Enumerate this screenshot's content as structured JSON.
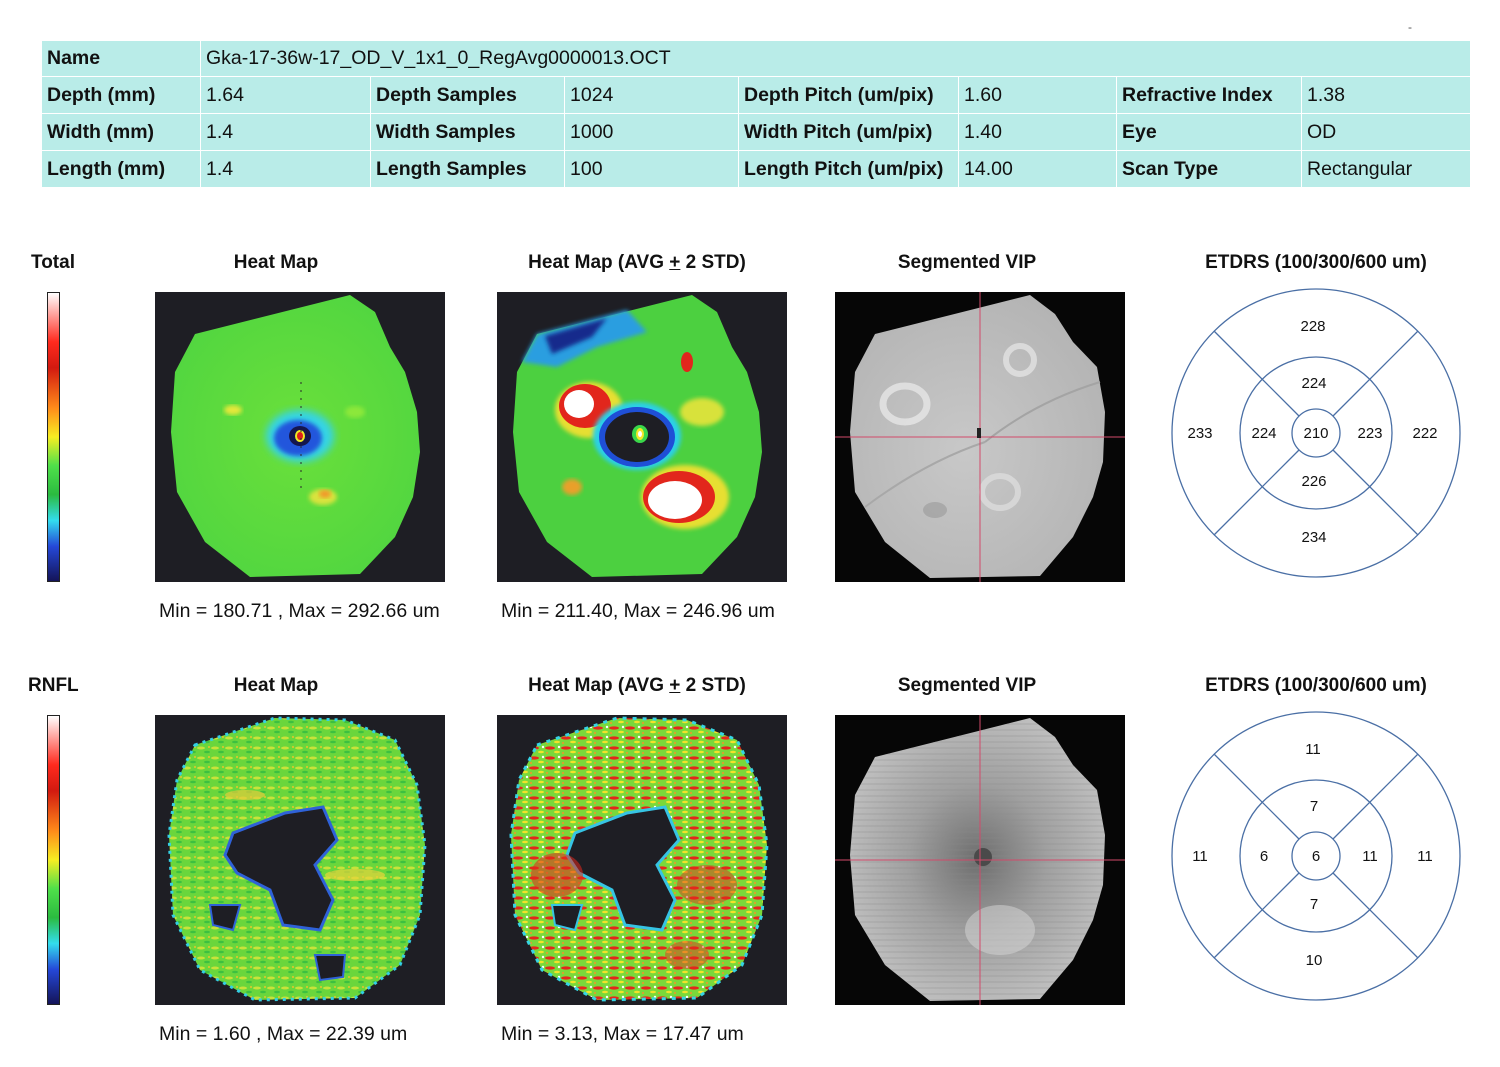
{
  "header": {
    "name_label": "Name",
    "name_value": "Gka-17-36w-17_OD_V_1x1_0_RegAvg0000013.OCT",
    "rows": [
      {
        "c1_label": "Depth (mm)",
        "c1_value": "1.64",
        "c2_label": "Depth Samples",
        "c2_value": "1024",
        "c3_label": "Depth Pitch (um/pix)",
        "c3_value": "1.60",
        "c4_label": "Refractive Index",
        "c4_value": "1.38"
      },
      {
        "c1_label": "Width (mm)",
        "c1_value": "1.4",
        "c2_label": "Width Samples",
        "c2_value": "1000",
        "c3_label": "Width Pitch (um/pix)",
        "c3_value": "1.40",
        "c4_label": "Eye",
        "c4_value": "OD"
      },
      {
        "c1_label": "Length (mm)",
        "c1_value": "1.4",
        "c2_label": "Length Samples",
        "c2_value": "100",
        "c3_label": "Length Pitch (um/pix)",
        "c3_value": "14.00",
        "c4_label": "Scan Type",
        "c4_value": "Rectangular"
      }
    ]
  },
  "column_titles": {
    "heat_map": "Heat Map",
    "heat_map_std_prefix": "Heat Map (AVG ",
    "heat_map_std_pm": "+",
    "heat_map_std_suffix": " 2 STD)",
    "segmented_vip": "Segmented VIP",
    "etdrs": "ETDRS (100/300/600 um)"
  },
  "sections": {
    "total": {
      "label": "Total",
      "heat_map_minmax": "Min = 180.71 , Max = 292.66 um",
      "std_map_minmax": "Min = 211.40, Max = 246.96 um",
      "etdrs": {
        "center": "210",
        "inner_superior": "224",
        "inner_temporal": "224",
        "inner_nasal": "223",
        "inner_inferior": "226",
        "outer_superior": "228",
        "outer_temporal": "233",
        "outer_nasal": "222",
        "outer_inferior": "234"
      }
    },
    "rnfl": {
      "label": "RNFL",
      "heat_map_minmax": "Min = 1.60 , Max = 22.39 um",
      "std_map_minmax": "Min = 3.13, Max = 17.47 um",
      "etdrs": {
        "center": "6",
        "inner_superior": "7",
        "inner_temporal": "6",
        "inner_nasal": "11",
        "inner_inferior": "7",
        "outer_superior": "11",
        "outer_temporal": "11",
        "outer_nasal": "11",
        "outer_inferior": "10"
      }
    }
  },
  "colors": {
    "header_bg": "#b9ece8",
    "etdrs_line": "#4a6fa5",
    "vip_crosshair": "#d24a6a",
    "map_bg": "#1e1e24"
  }
}
